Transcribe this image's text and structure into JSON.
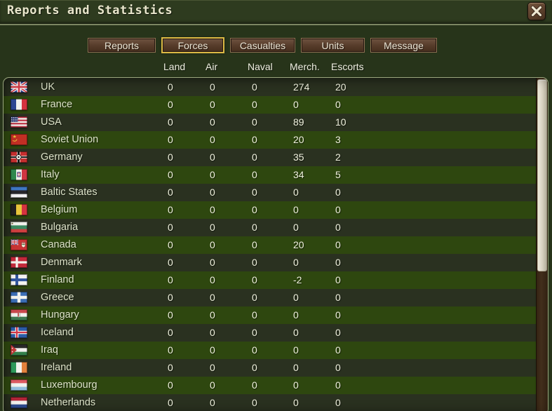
{
  "window": {
    "title": "Reports and Statistics",
    "close_icon": "x-mark"
  },
  "tabs": [
    {
      "label": "Reports",
      "active": false
    },
    {
      "label": "Forces",
      "active": true
    },
    {
      "label": "Casualties",
      "active": false
    },
    {
      "label": "Units",
      "active": false
    },
    {
      "label": "Message",
      "active": false
    }
  ],
  "table": {
    "columns": [
      "Land",
      "Air",
      "Naval",
      "Merch.",
      "Escorts"
    ],
    "rows": [
      {
        "country": "UK",
        "flag": "uk",
        "values": [
          "0",
          "0",
          "0",
          "274",
          "20"
        ]
      },
      {
        "country": "France",
        "flag": "france",
        "values": [
          "0",
          "0",
          "0",
          "0",
          "0"
        ]
      },
      {
        "country": "USA",
        "flag": "usa",
        "values": [
          "0",
          "0",
          "0",
          "89",
          "10"
        ]
      },
      {
        "country": "Soviet Union",
        "flag": "soviet_union",
        "values": [
          "0",
          "0",
          "0",
          "20",
          "3"
        ]
      },
      {
        "country": "Germany",
        "flag": "germany",
        "values": [
          "0",
          "0",
          "0",
          "35",
          "2"
        ]
      },
      {
        "country": "Italy",
        "flag": "italy",
        "values": [
          "0",
          "0",
          "0",
          "34",
          "5"
        ]
      },
      {
        "country": "Baltic States",
        "flag": "baltic_states",
        "values": [
          "0",
          "0",
          "0",
          "0",
          "0"
        ]
      },
      {
        "country": "Belgium",
        "flag": "belgium",
        "values": [
          "0",
          "0",
          "0",
          "0",
          "0"
        ]
      },
      {
        "country": "Bulgaria",
        "flag": "bulgaria",
        "values": [
          "0",
          "0",
          "0",
          "0",
          "0"
        ]
      },
      {
        "country": "Canada",
        "flag": "canada",
        "values": [
          "0",
          "0",
          "0",
          "20",
          "0"
        ]
      },
      {
        "country": "Denmark",
        "flag": "denmark",
        "values": [
          "0",
          "0",
          "0",
          "0",
          "0"
        ]
      },
      {
        "country": "Finland",
        "flag": "finland",
        "values": [
          "0",
          "0",
          "0",
          "-2",
          "0"
        ]
      },
      {
        "country": "Greece",
        "flag": "greece",
        "values": [
          "0",
          "0",
          "0",
          "0",
          "0"
        ]
      },
      {
        "country": "Hungary",
        "flag": "hungary",
        "values": [
          "0",
          "0",
          "0",
          "0",
          "0"
        ]
      },
      {
        "country": "Iceland",
        "flag": "iceland",
        "values": [
          "0",
          "0",
          "0",
          "0",
          "0"
        ]
      },
      {
        "country": "Iraq",
        "flag": "iraq",
        "values": [
          "0",
          "0",
          "0",
          "0",
          "0"
        ]
      },
      {
        "country": "Ireland",
        "flag": "ireland",
        "values": [
          "0",
          "0",
          "0",
          "0",
          "0"
        ]
      },
      {
        "country": "Luxembourg",
        "flag": "luxembourg",
        "values": [
          "0",
          "0",
          "0",
          "0",
          "0"
        ]
      },
      {
        "country": "Netherlands",
        "flag": "netherlands",
        "values": [
          "0",
          "0",
          "0",
          "0",
          "0"
        ]
      }
    ]
  },
  "colors": {
    "bg_main": "#27341a",
    "bg_titlebar": "#2e3b1f",
    "sep_line": "#8c9770",
    "title_text": "#e9e6cc",
    "accent_gold": "#dcb945",
    "button_text": "#ebe5d4",
    "header_text": "#f0f0e2",
    "panel_border": "#9aa77e",
    "row_dark": "#2a3120",
    "row_light": "#2e470f",
    "name_text": "#dce2c8",
    "value_text": "#f0f2de",
    "scrollbar_thumb": "#e9e3d2",
    "scrollbar_track": "#46311d"
  }
}
